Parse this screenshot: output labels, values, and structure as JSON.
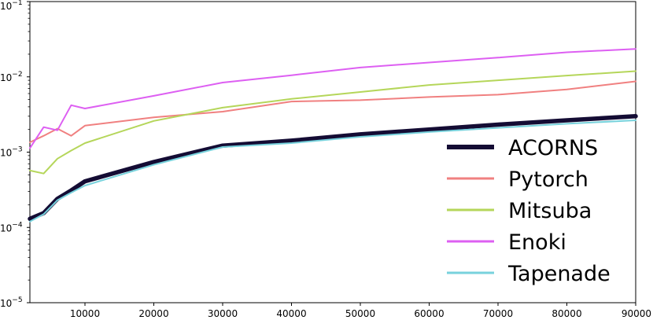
{
  "chart_data": {
    "type": "line",
    "title": "",
    "xlabel": "",
    "ylabel": "",
    "xlim": [
      2000,
      90000
    ],
    "ylim": [
      1e-05,
      0.1
    ],
    "yscale": "log",
    "grid": false,
    "legend_position": "right",
    "x_ticks": [
      10000,
      20000,
      30000,
      40000,
      50000,
      60000,
      70000,
      80000,
      90000
    ],
    "x_tick_labels": [
      "10000",
      "20000",
      "30000",
      "40000",
      "50000",
      "60000",
      "70000",
      "80000",
      "90000"
    ],
    "y_ticks": [
      {
        "value": 0.1,
        "base": "10",
        "exp": "−1"
      },
      {
        "value": 0.01,
        "base": "10",
        "exp": "−2"
      },
      {
        "value": 0.001,
        "base": "10",
        "exp": "−3"
      },
      {
        "value": 0.0001,
        "base": "10",
        "exp": "−4"
      },
      {
        "value": 1e-05,
        "base": "10",
        "exp": "−5"
      }
    ],
    "series": [
      {
        "name": "ACORNS",
        "color": "#140c34",
        "x": [
          2000,
          4000,
          6000,
          8000,
          10000,
          20000,
          30000,
          40000,
          50000,
          60000,
          70000,
          80000,
          90000
        ],
        "y": [
          0.00013,
          0.000155,
          0.00024,
          0.00031,
          0.00041,
          0.00074,
          0.00122,
          0.00142,
          0.00172,
          0.002,
          0.00232,
          0.00265,
          0.003
        ]
      },
      {
        "name": "Pytorch",
        "color": "#f08080",
        "x": [
          2000,
          4000,
          6000,
          8000,
          10000,
          20000,
          30000,
          40000,
          50000,
          60000,
          70000,
          80000,
          90000
        ],
        "y": [
          0.00135,
          0.00165,
          0.00205,
          0.00165,
          0.00225,
          0.0029,
          0.00345,
          0.0047,
          0.0049,
          0.0054,
          0.0058,
          0.0068,
          0.0087
        ]
      },
      {
        "name": "Mitsuba",
        "color": "#b5d65a",
        "x": [
          2000,
          4000,
          6000,
          8000,
          10000,
          20000,
          30000,
          40000,
          50000,
          60000,
          70000,
          80000,
          90000
        ],
        "y": [
          0.00057,
          0.00052,
          0.00082,
          0.00105,
          0.00132,
          0.0026,
          0.0039,
          0.0051,
          0.0063,
          0.0078,
          0.009,
          0.0104,
          0.0119
        ]
      },
      {
        "name": "Enoki",
        "color": "#dd5ff2",
        "x": [
          2000,
          4000,
          6000,
          8000,
          10000,
          20000,
          30000,
          40000,
          50000,
          60000,
          70000,
          80000,
          90000
        ],
        "y": [
          0.00113,
          0.00215,
          0.00195,
          0.0042,
          0.0038,
          0.0056,
          0.0084,
          0.0105,
          0.0133,
          0.0155,
          0.018,
          0.0212,
          0.0235
        ]
      },
      {
        "name": "Tapenade",
        "color": "#78d2dc",
        "x": [
          2000,
          4000,
          6000,
          8000,
          10000,
          20000,
          30000,
          40000,
          50000,
          60000,
          70000,
          80000,
          90000
        ],
        "y": [
          0.00012,
          0.00015,
          0.00023,
          0.00029,
          0.00036,
          0.00068,
          0.00117,
          0.00132,
          0.0016,
          0.00185,
          0.0021,
          0.00238,
          0.00265
        ]
      }
    ]
  }
}
